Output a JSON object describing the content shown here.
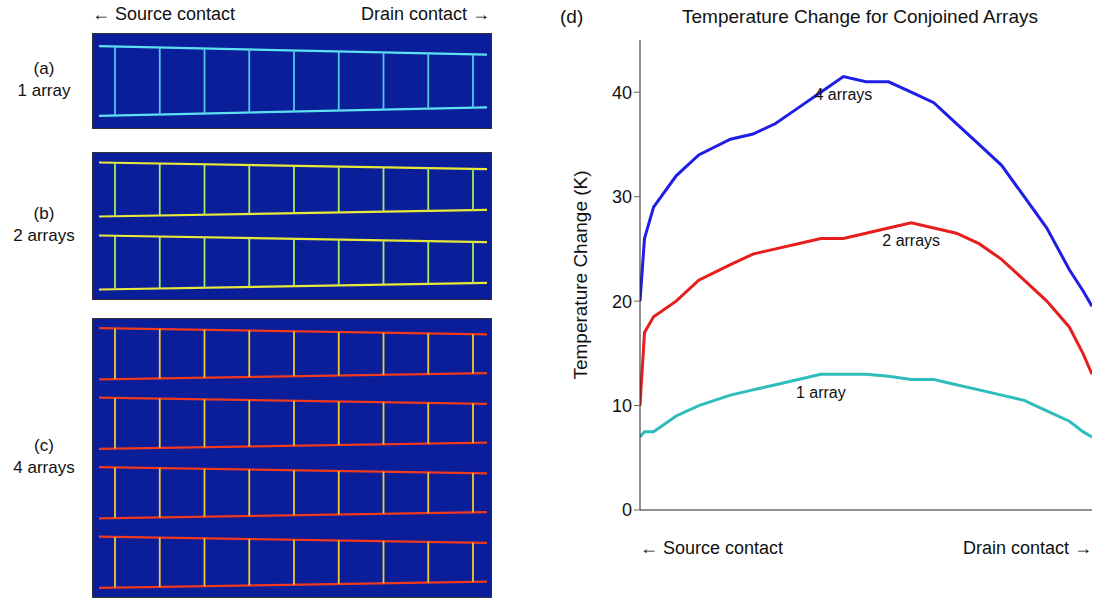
{
  "image_header": {
    "left": "← Source contact",
    "right": "Drain contact →"
  },
  "panels": [
    {
      "letter": "(a)",
      "label": "1 array"
    },
    {
      "letter": "(b)",
      "label": "2 arrays"
    },
    {
      "letter": "(c)",
      "label": "4 arrays"
    }
  ],
  "chart_data": {
    "letter": "(d)",
    "type": "line",
    "title": "Temperature Change for Conjoined Arrays",
    "ylabel": "Temperature Change (K)",
    "xlabel": {
      "left": "← Source contact",
      "right": "Drain contact →"
    },
    "x": [
      0,
      1,
      3,
      8,
      13,
      20,
      25,
      30,
      35,
      40,
      45,
      50,
      55,
      60,
      65,
      70,
      75,
      80,
      85,
      90,
      95,
      98,
      100
    ],
    "xlim": [
      0,
      100
    ],
    "xticks": [],
    "ylim": [
      0,
      45
    ],
    "yticks": [
      0,
      10,
      20,
      30,
      40
    ],
    "tick_labels": "y",
    "series": [
      {
        "name": "4 arrays",
        "color": "#1e1ee6",
        "values": [
          20,
          26,
          29,
          32,
          34,
          35.5,
          36,
          37,
          38.5,
          40,
          41.5,
          41,
          41,
          40,
          39,
          37,
          35,
          33,
          30,
          27,
          23,
          21,
          19.5
        ]
      },
      {
        "name": "2 arrays",
        "color": "#e61e1e",
        "values": [
          10,
          17,
          18.5,
          20,
          22,
          23.5,
          24.5,
          25,
          25.5,
          26,
          26,
          26.5,
          27,
          27.5,
          27,
          26.5,
          25.5,
          24,
          22,
          20,
          17.5,
          15,
          13
        ]
      },
      {
        "name": "1 array",
        "color": "#2ebcbc",
        "values": [
          7,
          7.5,
          7.5,
          9,
          10,
          11,
          11.5,
          12,
          12.5,
          13,
          13,
          13,
          12.8,
          12.5,
          12.5,
          12,
          11.5,
          11,
          10.5,
          9.5,
          8.5,
          7.5,
          7
        ]
      }
    ]
  }
}
